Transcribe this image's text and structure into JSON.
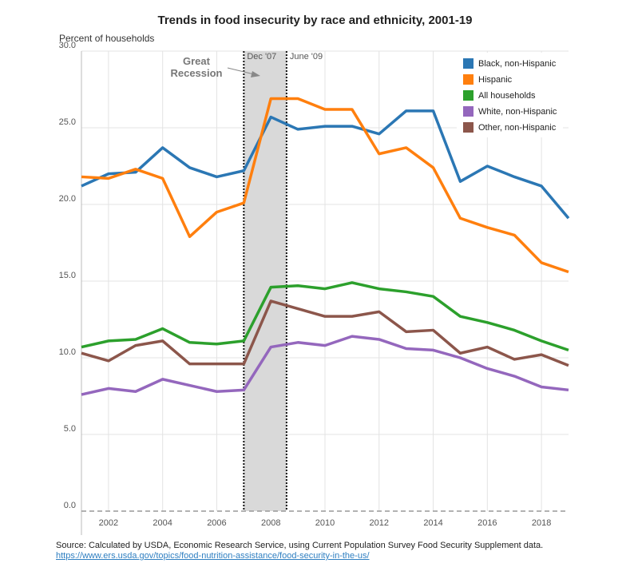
{
  "chart_data": {
    "type": "line",
    "title": "Trends in food insecurity by race and ethnicity, 2001-19",
    "ylabel": "Percent of households",
    "xlabel": "",
    "x": [
      2001,
      2002,
      2003,
      2004,
      2005,
      2006,
      2007,
      2008,
      2009,
      2010,
      2011,
      2012,
      2013,
      2014,
      2015,
      2016,
      2017,
      2018,
      2019
    ],
    "xlim": [
      2001,
      2019
    ],
    "ylim": [
      0,
      30
    ],
    "x_ticks": [
      "2002",
      "2004",
      "2006",
      "2008",
      "2010",
      "2012",
      "2014",
      "2016",
      "2018"
    ],
    "y_ticks": [
      "0.0",
      "5.0",
      "10.0",
      "15.0",
      "20.0",
      "25.0",
      "30.0"
    ],
    "grid": true,
    "legend_position": "top-right",
    "series": [
      {
        "name": "Black, non-Hispanic",
        "color": "#2b77b4",
        "values": [
          21.2,
          22.0,
          22.1,
          23.7,
          22.4,
          21.8,
          22.2,
          25.7,
          24.9,
          25.1,
          25.1,
          24.6,
          26.1,
          26.1,
          21.5,
          22.5,
          21.8,
          21.2,
          19.1
        ]
      },
      {
        "name": "Hispanic",
        "color": "#ff7f0e",
        "values": [
          21.8,
          21.7,
          22.3,
          21.7,
          17.9,
          19.5,
          20.1,
          26.9,
          26.9,
          26.2,
          26.2,
          23.3,
          23.7,
          22.4,
          19.1,
          18.5,
          18.0,
          16.2,
          15.6
        ]
      },
      {
        "name": "All households",
        "color": "#2ca02c",
        "values": [
          10.7,
          11.1,
          11.2,
          11.9,
          11.0,
          10.9,
          11.1,
          14.6,
          14.7,
          14.5,
          14.9,
          14.5,
          14.3,
          14.0,
          12.7,
          12.3,
          11.8,
          11.1,
          10.5
        ]
      },
      {
        "name": "White, non-Hispanic",
        "color": "#9467bd",
        "values": [
          7.6,
          8.0,
          7.8,
          8.6,
          8.2,
          7.8,
          7.9,
          10.7,
          11.0,
          10.8,
          11.4,
          11.2,
          10.6,
          10.5,
          10.0,
          9.3,
          8.8,
          8.1,
          7.9
        ]
      },
      {
        "name": "Other, non-Hispanic",
        "color": "#8c564b",
        "values": [
          10.3,
          9.8,
          10.8,
          11.1,
          9.6,
          9.6,
          9.6,
          13.7,
          13.2,
          12.7,
          12.7,
          13.0,
          11.7,
          11.8,
          10.3,
          10.7,
          9.9,
          10.2,
          9.5
        ]
      }
    ],
    "recession": {
      "start": 2007.0,
      "end": 2008.58,
      "start_label": "Dec '07",
      "end_label": "June '09",
      "label_line1": "Great",
      "label_line2": "Recession"
    }
  },
  "source": {
    "text": "Source: Calculated by USDA, Economic Research Service, using Current Population Survey Food Security Supplement data.",
    "link": "https://www.ers.usda.gov/topics/food-nutrition-assistance/food-security-in-the-us/"
  }
}
